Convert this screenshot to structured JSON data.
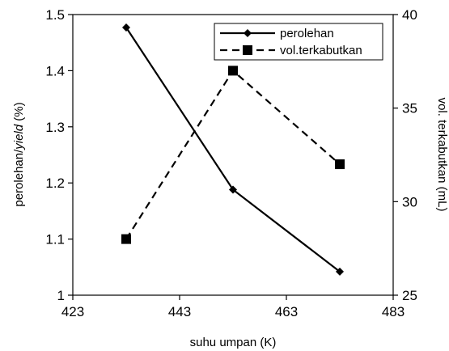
{
  "chart_data": {
    "type": "line",
    "xlabel": "suhu umpan (K)",
    "ylabel_left_prefix": "perolehan/",
    "ylabel_left_italic": "yield",
    "ylabel_left_suffix": " (%)",
    "ylabel_right": "vol. terkabutkan (mL)",
    "xlim": [
      423,
      483
    ],
    "x_ticks": [
      "423",
      "443",
      "463",
      "483"
    ],
    "ylim_left": [
      1,
      1.5
    ],
    "y_ticks_left": [
      "1",
      "1.1",
      "1.2",
      "1.3",
      "1.4",
      "1.5"
    ],
    "ylim_right": [
      25,
      40
    ],
    "y_ticks_right": [
      "25",
      "30",
      "35",
      "40"
    ],
    "legend_position": "top-right",
    "grid": false,
    "series": [
      {
        "name": "perolehan",
        "axis": "left",
        "style": "solid",
        "marker": "diamond",
        "color": "#000000",
        "x": [
          433,
          453,
          473
        ],
        "y": [
          1.477,
          1.188,
          1.042
        ]
      },
      {
        "name": "vol.terkabutkan",
        "axis": "right",
        "style": "dashed",
        "marker": "square",
        "color": "#000000",
        "x": [
          433,
          453,
          473
        ],
        "y": [
          28,
          37,
          32
        ]
      }
    ]
  }
}
